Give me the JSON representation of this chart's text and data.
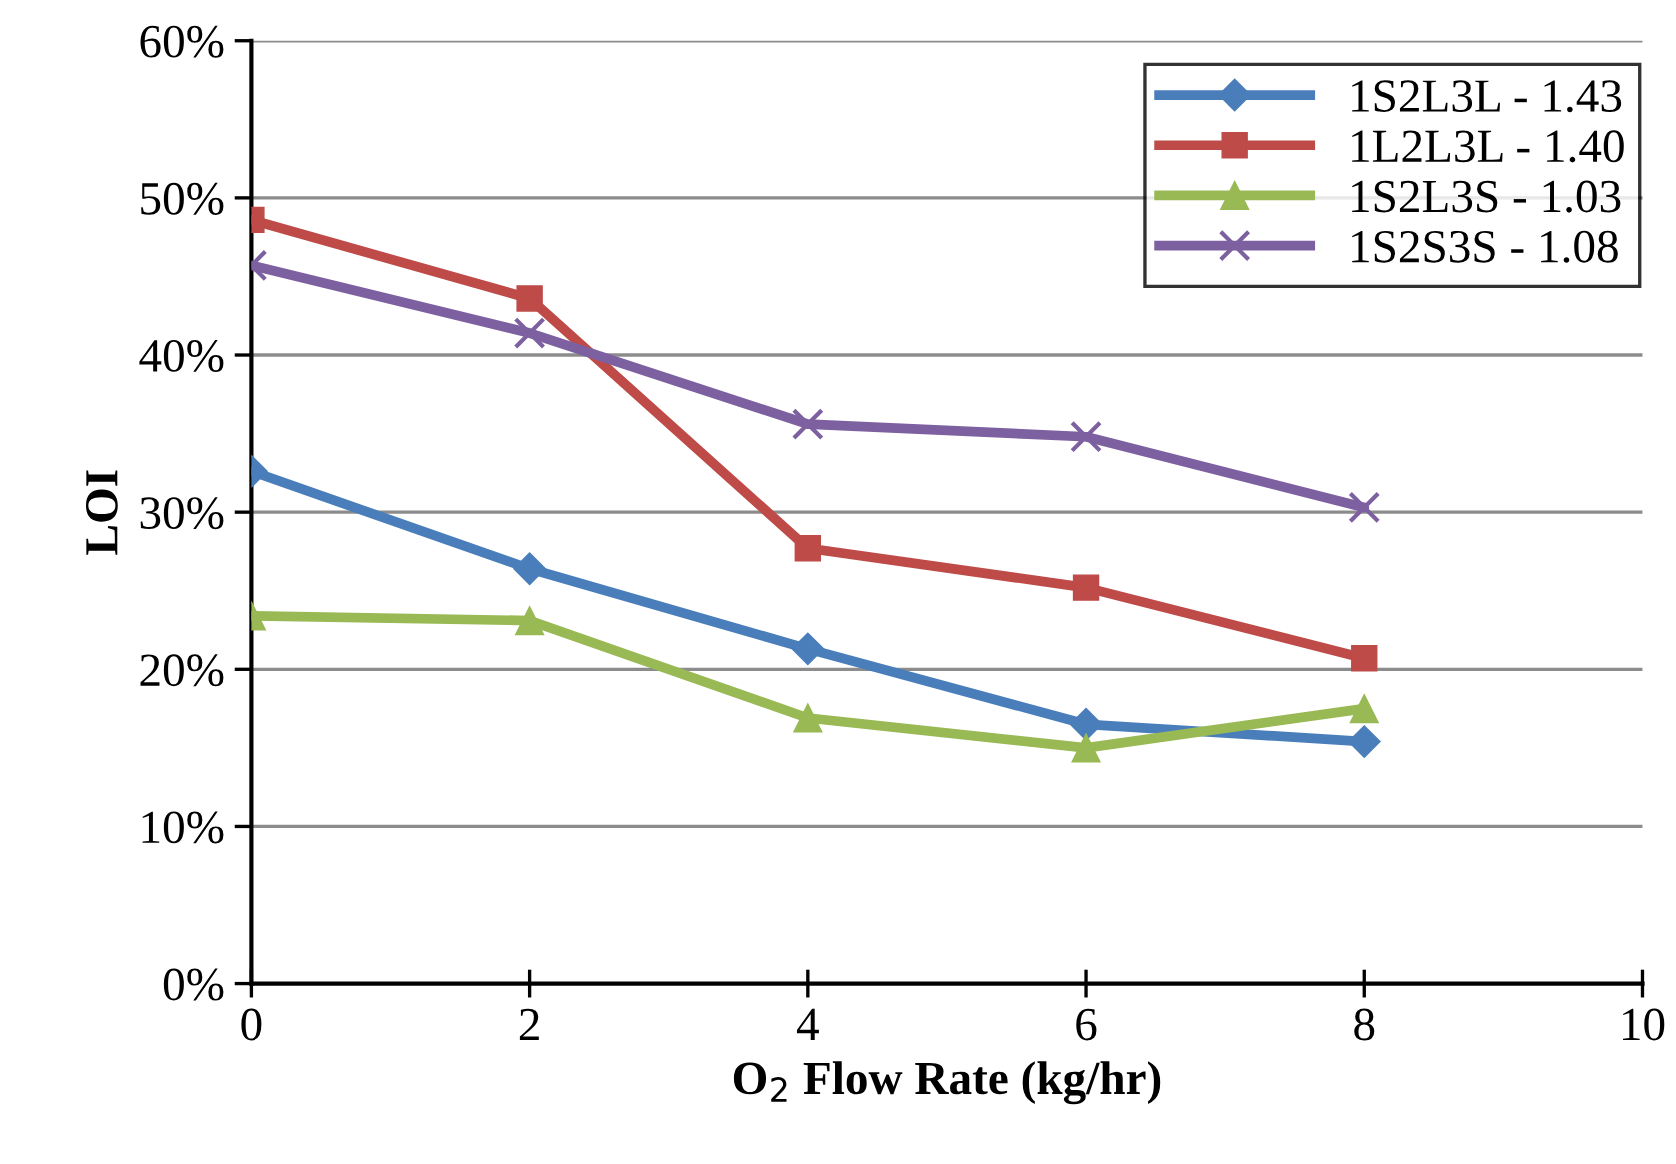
{
  "chart_data": {
    "type": "line",
    "xlabel": "O$_{2}$ Flow Rate (kg/hr)",
    "ylabel": "LOI",
    "x": [
      0,
      2,
      4,
      6,
      8
    ],
    "xlim": [
      0,
      10
    ],
    "xticks": [
      0,
      2,
      4,
      6,
      8,
      10
    ],
    "ylim": [
      0,
      60
    ],
    "yticks": [
      {
        "value": 0,
        "label": "0%"
      },
      {
        "value": 10,
        "label": "10%"
      },
      {
        "value": 20,
        "label": "20%"
      },
      {
        "value": 30,
        "label": "30%"
      },
      {
        "value": 40,
        "label": "40%"
      },
      {
        "value": 50,
        "label": "50%"
      },
      {
        "value": 60,
        "label": "60%"
      }
    ],
    "grid": "y",
    "legend": "top right",
    "line_style": "solid",
    "series": [
      {
        "name": "1S2L3L - 1.43",
        "color": "#4a7ebb",
        "marker": "diamond",
        "values": [
          32.6,
          26.4,
          21.3,
          16.5,
          15.4
        ]
      },
      {
        "name": "1L2L3L - 1.40",
        "color": "#be4b48",
        "marker": "square",
        "values": [
          48.6,
          43.6,
          27.7,
          25.2,
          20.7
        ]
      },
      {
        "name": "1S2L3S - 1.03",
        "color": "#98b954",
        "marker": "triangle",
        "values": [
          23.4,
          23.1,
          16.9,
          15.0,
          17.5
        ]
      },
      {
        "name": "1S2S3S - 1.08",
        "color": "#7d60a0",
        "marker": "cross",
        "values": [
          45.7,
          41.4,
          35.6,
          34.8,
          30.3
        ]
      }
    ]
  }
}
